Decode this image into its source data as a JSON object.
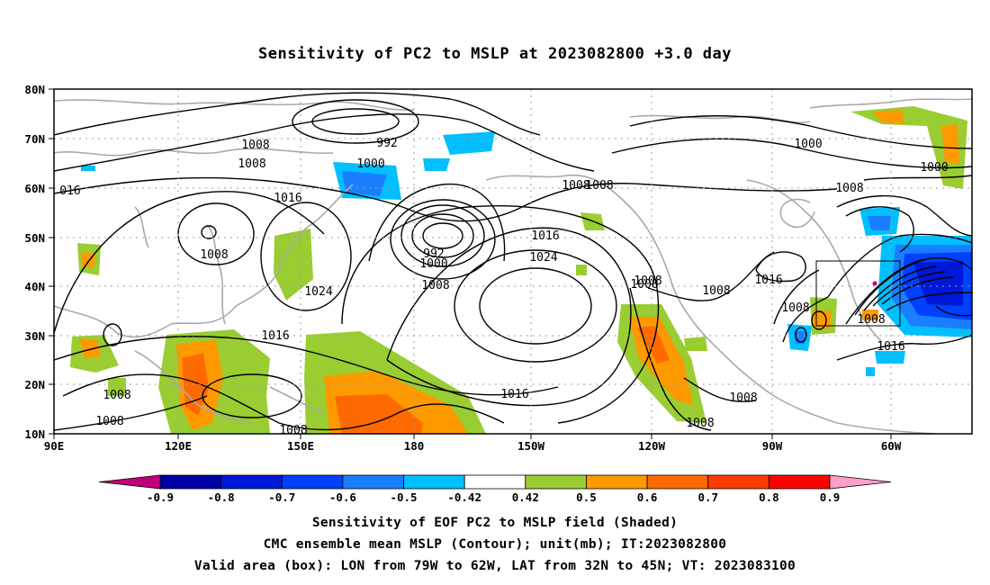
{
  "title": "Sensitivity of PC2 to MSLP at 2023082800 +3.0 day",
  "lat_labels": [
    "80N",
    "70N",
    "60N",
    "50N",
    "40N",
    "30N",
    "20N",
    "10N"
  ],
  "lon_labels": [
    "90E",
    "120E",
    "150E",
    "180",
    "150W",
    "120W",
    "90W",
    "60W"
  ],
  "colorbar": {
    "labels": [
      "-0.9",
      "-0.8",
      "-0.7",
      "-0.6",
      "-0.5",
      "-0.42",
      "0.42",
      "0.5",
      "0.6",
      "0.7",
      "0.8",
      "0.9"
    ],
    "colors": [
      "#c0007a",
      "#0000a8",
      "#0018d8",
      "#0040ff",
      "#1a7fff",
      "#00bfff",
      "#ffffff",
      "#9acd32",
      "#ff9900",
      "#ff6a00",
      "#ff3a00",
      "#ff0000",
      "#ff9ec8"
    ]
  },
  "contour_labels": [
    "1008",
    "1008",
    "016",
    "992",
    "1000",
    "1016",
    "1008",
    "1008",
    "1000",
    "1000",
    "1008",
    "1016",
    "1024",
    "1008",
    "1024",
    "1000",
    "992",
    "1008",
    "1008",
    "1016",
    "1008",
    "1016",
    "1008",
    "1008",
    "1008",
    "1016",
    "1016",
    "1008",
    "1008",
    "1008",
    "1008",
    "1008"
  ],
  "captions": [
    "Sensitivity of EOF PC2 to MSLP field (Shaded)",
    "CMC ensemble mean MSLP (Contour); unit(mb); IT:2023082800",
    "Valid area (box): LON from 79W to 62W, LAT from 32N to 45N; VT: 2023083100"
  ]
}
